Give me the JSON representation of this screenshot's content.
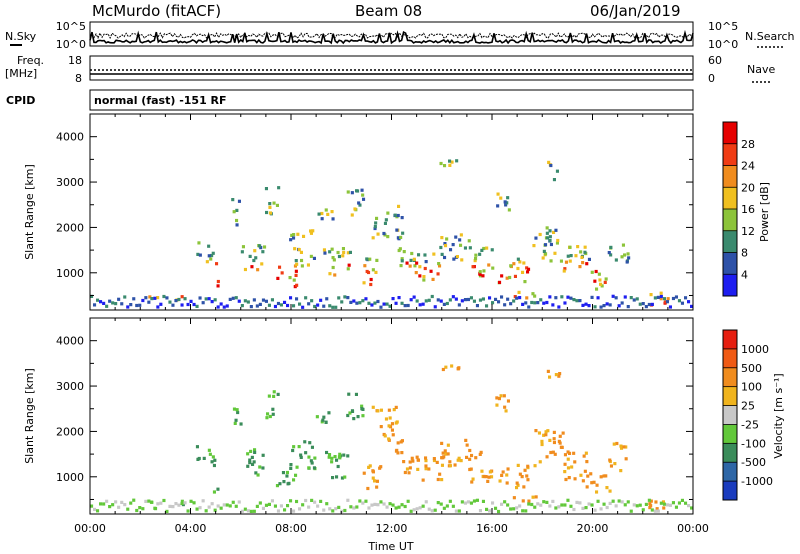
{
  "header": {
    "station": "McMurdo (fitACF)",
    "beam": "Beam 08",
    "date": "06/Jan/2019"
  },
  "panels": {
    "noise": {
      "left_label": "N.Sky",
      "right_label": "N.Search",
      "left_ticks": [
        "10^5",
        "10^0"
      ],
      "right_ticks": [
        "10^5",
        "10^0"
      ]
    },
    "freq": {
      "label_line1": "Freq.",
      "label_line2": "[MHz]",
      "left_ticks": [
        "18",
        "8"
      ],
      "right_ticks": [
        "60",
        "0"
      ],
      "right_label": "Nave"
    },
    "cpid": {
      "label": "CPID",
      "value": "normal (fast) -151 RF"
    }
  },
  "chart_data": [
    {
      "type": "heatmap",
      "name": "power",
      "ylabel": "Slant Range [km]",
      "xlabel": "",
      "yticks": [
        "1000",
        "2000",
        "3000",
        "4000"
      ],
      "ylim": [
        180,
        4500
      ],
      "xlim": [
        0,
        24
      ],
      "colorbar": {
        "label": "Power [dB]",
        "ticks": [
          "4",
          "8",
          "12",
          "16",
          "20",
          "24",
          "28"
        ],
        "colors": [
          "#1e1ef0",
          "#2e52a8",
          "#3a8a6e",
          "#8cc43a",
          "#f0c020",
          "#f08c1e",
          "#f03c14",
          "#e60000"
        ]
      }
    },
    {
      "type": "heatmap",
      "name": "velocity",
      "ylabel": "Slant Range [km]",
      "xlabel": "Time UT",
      "xticks": [
        "00:00",
        "04:00",
        "08:00",
        "12:00",
        "16:00",
        "20:00",
        "00:00"
      ],
      "yticks": [
        "1000",
        "2000",
        "3000",
        "4000"
      ],
      "ylim": [
        180,
        4500
      ],
      "xlim": [
        0,
        24
      ],
      "colorbar": {
        "label": "Velocity [m s⁻¹]",
        "ticks": [
          "1000",
          "500",
          "100",
          "25",
          "-25",
          "-100",
          "-500",
          "-1000"
        ],
        "colors": [
          "#1a3cbe",
          "#2e66a6",
          "#3a8c5a",
          "#62c83a",
          "#c8c8c8",
          "#f0b41e",
          "#f08c1e",
          "#f05a14",
          "#e61e10"
        ]
      }
    }
  ]
}
